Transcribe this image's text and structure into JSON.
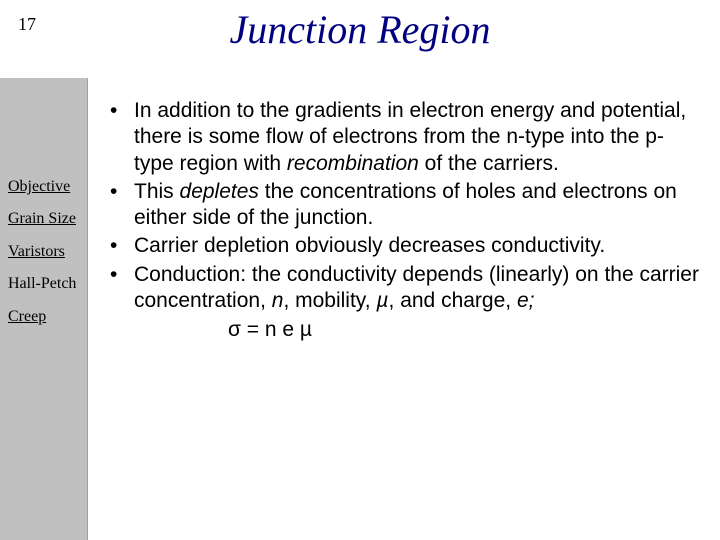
{
  "page_number": "17",
  "title": "Junction Region",
  "colors": {
    "title": "#000080",
    "sidebar_bg": "#c0c0c0",
    "text": "#000000",
    "bg": "#ffffff"
  },
  "fonts": {
    "title": {
      "family": "Times New Roman",
      "style": "italic",
      "size_pt": 30
    },
    "body": {
      "family": "Arial",
      "size_pt": 16
    },
    "nav": {
      "family": "Times New Roman",
      "size_pt": 12
    }
  },
  "sidebar": {
    "items": [
      {
        "label": "Objective",
        "link": true
      },
      {
        "label": "Grain Size",
        "link": true
      },
      {
        "label": "Varistors",
        "link": true
      },
      {
        "label": "Hall-Petch",
        "link": false
      },
      {
        "label": "Creep",
        "link": true
      }
    ]
  },
  "bullets": {
    "b1": {
      "pre": "In addition to the gradients in electron energy and potential, there is some flow of electrons from the n-type into the p-type region with ",
      "em": "recombination",
      "post": " of the carriers."
    },
    "b2": {
      "pre": "This ",
      "em": "depletes",
      "post": " the concentrations of holes and electrons on either side of the junction."
    },
    "b3": {
      "text": "Carrier depletion obviously decreases conductivity."
    },
    "b4": {
      "pre": "Conduction: the conductivity depends (linearly) on the carrier concentration, ",
      "v1": "n",
      "mid1": ", mobility, ",
      "v2": "µ",
      "mid2": ", and charge, ",
      "v3": "e;"
    },
    "eq": "σ = n e µ"
  }
}
